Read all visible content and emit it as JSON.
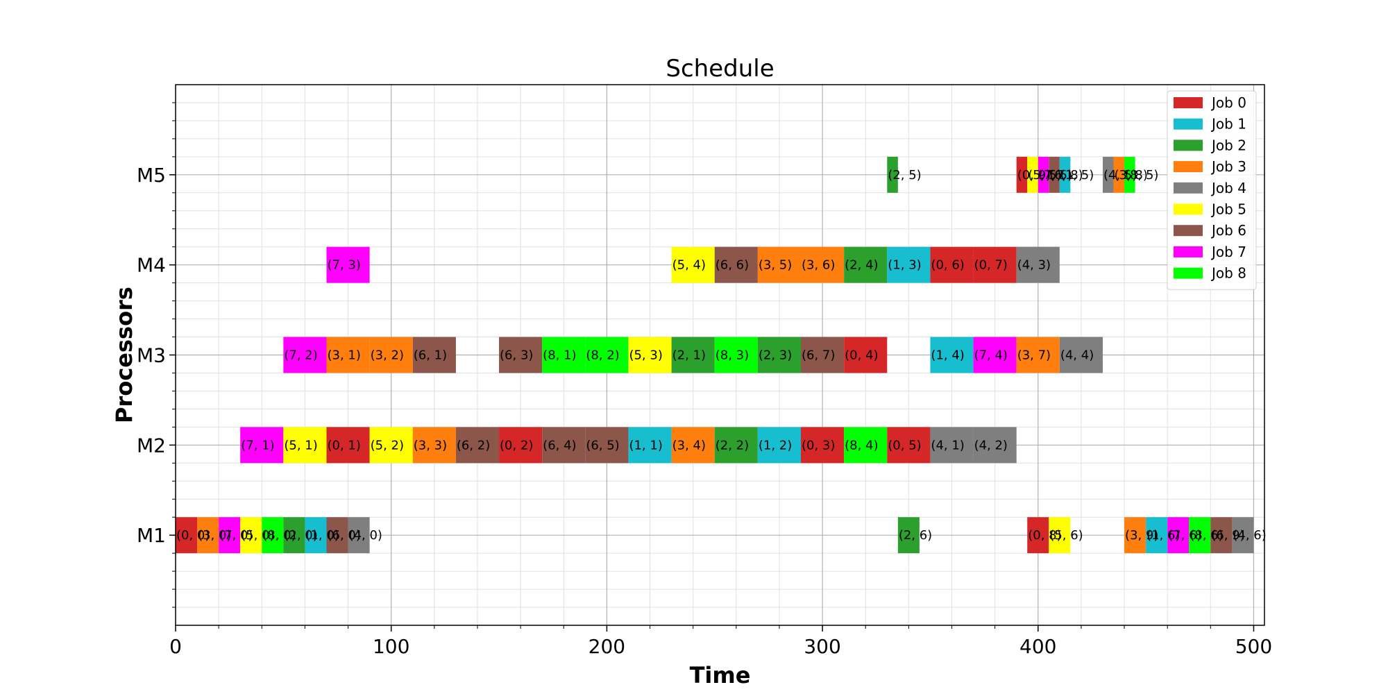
{
  "chart_data": {
    "type": "gantt",
    "title": "Schedule",
    "xlabel": "Time",
    "ylabel": "Processors",
    "xlim": [
      0,
      505
    ],
    "x_ticks": [
      0,
      100,
      200,
      300,
      400,
      500
    ],
    "x_minor_step": 20,
    "processors": [
      "M1",
      "M2",
      "M3",
      "M4",
      "M5"
    ],
    "grid": true,
    "legend_position": "top-right",
    "jobs": [
      {
        "name": "Job 0",
        "color": "#d62728"
      },
      {
        "name": "Job 1",
        "color": "#17becf"
      },
      {
        "name": "Job 2",
        "color": "#2ca02c"
      },
      {
        "name": "Job 3",
        "color": "#ff7f0e"
      },
      {
        "name": "Job 4",
        "color": "#7f7f7f"
      },
      {
        "name": "Job 5",
        "color": "#ffff00"
      },
      {
        "name": "Job 6",
        "color": "#8c564b"
      },
      {
        "name": "Job 7",
        "color": "#ff00ff"
      },
      {
        "name": "Job 8",
        "color": "#00ff00"
      }
    ],
    "tasks": [
      {
        "processor": "M1",
        "job": 0,
        "start": 0,
        "end": 10,
        "label": "(0, 0)"
      },
      {
        "processor": "M1",
        "job": 3,
        "start": 10,
        "end": 20,
        "label": "(3, 0)"
      },
      {
        "processor": "M1",
        "job": 7,
        "start": 20,
        "end": 30,
        "label": "(7, 0)"
      },
      {
        "processor": "M1",
        "job": 5,
        "start": 30,
        "end": 40,
        "label": "(5, 0)"
      },
      {
        "processor": "M1",
        "job": 8,
        "start": 40,
        "end": 50,
        "label": "(8, 0)"
      },
      {
        "processor": "M1",
        "job": 2,
        "start": 50,
        "end": 60,
        "label": "(2, 0)"
      },
      {
        "processor": "M1",
        "job": 1,
        "start": 60,
        "end": 70,
        "label": "(1, 0)"
      },
      {
        "processor": "M1",
        "job": 6,
        "start": 70,
        "end": 80,
        "label": "(6, 0)"
      },
      {
        "processor": "M1",
        "job": 4,
        "start": 80,
        "end": 90,
        "label": "(4, 0)"
      },
      {
        "processor": "M1",
        "job": 2,
        "start": 335,
        "end": 345,
        "label": "(2, 6)"
      },
      {
        "processor": "M1",
        "job": 0,
        "start": 395,
        "end": 405,
        "label": "(0, 8)"
      },
      {
        "processor": "M1",
        "job": 5,
        "start": 405,
        "end": 415,
        "label": "(5, 6)"
      },
      {
        "processor": "M1",
        "job": 3,
        "start": 440,
        "end": 450,
        "label": "(3, 9)"
      },
      {
        "processor": "M1",
        "job": 1,
        "start": 450,
        "end": 460,
        "label": "(1, 6)"
      },
      {
        "processor": "M1",
        "job": 7,
        "start": 460,
        "end": 470,
        "label": "(7, 6)"
      },
      {
        "processor": "M1",
        "job": 8,
        "start": 470,
        "end": 480,
        "label": "(8, 6)"
      },
      {
        "processor": "M1",
        "job": 6,
        "start": 480,
        "end": 490,
        "label": "(6, 9)"
      },
      {
        "processor": "M1",
        "job": 4,
        "start": 490,
        "end": 500,
        "label": "(4, 6)"
      },
      {
        "processor": "M2",
        "job": 7,
        "start": 30,
        "end": 50,
        "label": "(7, 1)"
      },
      {
        "processor": "M2",
        "job": 5,
        "start": 50,
        "end": 70,
        "label": "(5, 1)"
      },
      {
        "processor": "M2",
        "job": 0,
        "start": 70,
        "end": 90,
        "label": "(0, 1)"
      },
      {
        "processor": "M2",
        "job": 5,
        "start": 90,
        "end": 110,
        "label": "(5, 2)"
      },
      {
        "processor": "M2",
        "job": 3,
        "start": 110,
        "end": 130,
        "label": "(3, 3)"
      },
      {
        "processor": "M2",
        "job": 6,
        "start": 130,
        "end": 150,
        "label": "(6, 2)"
      },
      {
        "processor": "M2",
        "job": 0,
        "start": 150,
        "end": 170,
        "label": "(0, 2)"
      },
      {
        "processor": "M2",
        "job": 6,
        "start": 170,
        "end": 190,
        "label": "(6, 4)"
      },
      {
        "processor": "M2",
        "job": 6,
        "start": 190,
        "end": 210,
        "label": "(6, 5)"
      },
      {
        "processor": "M2",
        "job": 1,
        "start": 210,
        "end": 230,
        "label": "(1, 1)"
      },
      {
        "processor": "M2",
        "job": 3,
        "start": 230,
        "end": 250,
        "label": "(3, 4)"
      },
      {
        "processor": "M2",
        "job": 2,
        "start": 250,
        "end": 270,
        "label": "(2, 2)"
      },
      {
        "processor": "M2",
        "job": 1,
        "start": 270,
        "end": 290,
        "label": "(1, 2)"
      },
      {
        "processor": "M2",
        "job": 0,
        "start": 290,
        "end": 310,
        "label": "(0, 3)"
      },
      {
        "processor": "M2",
        "job": 8,
        "start": 310,
        "end": 330,
        "label": "(8, 4)"
      },
      {
        "processor": "M2",
        "job": 0,
        "start": 330,
        "end": 350,
        "label": "(0, 5)"
      },
      {
        "processor": "M2",
        "job": 4,
        "start": 350,
        "end": 370,
        "label": "(4, 1)"
      },
      {
        "processor": "M2",
        "job": 4,
        "start": 370,
        "end": 390,
        "label": "(4, 2)"
      },
      {
        "processor": "M3",
        "job": 7,
        "start": 50,
        "end": 70,
        "label": "(7, 2)"
      },
      {
        "processor": "M3",
        "job": 3,
        "start": 70,
        "end": 90,
        "label": "(3, 1)"
      },
      {
        "processor": "M3",
        "job": 3,
        "start": 90,
        "end": 110,
        "label": "(3, 2)"
      },
      {
        "processor": "M3",
        "job": 6,
        "start": 110,
        "end": 130,
        "label": "(6, 1)"
      },
      {
        "processor": "M3",
        "job": 6,
        "start": 150,
        "end": 170,
        "label": "(6, 3)"
      },
      {
        "processor": "M3",
        "job": 8,
        "start": 170,
        "end": 190,
        "label": "(8, 1)"
      },
      {
        "processor": "M3",
        "job": 8,
        "start": 190,
        "end": 210,
        "label": "(8, 2)"
      },
      {
        "processor": "M3",
        "job": 5,
        "start": 210,
        "end": 230,
        "label": "(5, 3)"
      },
      {
        "processor": "M3",
        "job": 2,
        "start": 230,
        "end": 250,
        "label": "(2, 1)"
      },
      {
        "processor": "M3",
        "job": 8,
        "start": 250,
        "end": 270,
        "label": "(8, 3)"
      },
      {
        "processor": "M3",
        "job": 2,
        "start": 270,
        "end": 290,
        "label": "(2, 3)"
      },
      {
        "processor": "M3",
        "job": 6,
        "start": 290,
        "end": 310,
        "label": "(6, 7)"
      },
      {
        "processor": "M3",
        "job": 0,
        "start": 310,
        "end": 330,
        "label": "(0, 4)"
      },
      {
        "processor": "M3",
        "job": 1,
        "start": 350,
        "end": 370,
        "label": "(1, 4)"
      },
      {
        "processor": "M3",
        "job": 7,
        "start": 370,
        "end": 390,
        "label": "(7, 4)"
      },
      {
        "processor": "M3",
        "job": 3,
        "start": 390,
        "end": 410,
        "label": "(3, 7)"
      },
      {
        "processor": "M3",
        "job": 4,
        "start": 410,
        "end": 430,
        "label": "(4, 4)"
      },
      {
        "processor": "M4",
        "job": 7,
        "start": 70,
        "end": 90,
        "label": "(7, 3)"
      },
      {
        "processor": "M4",
        "job": 5,
        "start": 230,
        "end": 250,
        "label": "(5, 4)"
      },
      {
        "processor": "M4",
        "job": 6,
        "start": 250,
        "end": 270,
        "label": "(6, 6)"
      },
      {
        "processor": "M4",
        "job": 3,
        "start": 270,
        "end": 290,
        "label": "(3, 5)"
      },
      {
        "processor": "M4",
        "job": 3,
        "start": 290,
        "end": 310,
        "label": "(3, 6)"
      },
      {
        "processor": "M4",
        "job": 2,
        "start": 310,
        "end": 330,
        "label": "(2, 4)"
      },
      {
        "processor": "M4",
        "job": 1,
        "start": 330,
        "end": 350,
        "label": "(1, 3)"
      },
      {
        "processor": "M4",
        "job": 0,
        "start": 350,
        "end": 370,
        "label": "(0, 6)"
      },
      {
        "processor": "M4",
        "job": 0,
        "start": 370,
        "end": 390,
        "label": "(0, 7)"
      },
      {
        "processor": "M4",
        "job": 4,
        "start": 390,
        "end": 410,
        "label": "(4, 3)"
      },
      {
        "processor": "M5",
        "job": 2,
        "start": 330,
        "end": 335,
        "label": "(2, 5)"
      },
      {
        "processor": "M5",
        "job": 0,
        "start": 390,
        "end": 395,
        "label": "(0, 9)"
      },
      {
        "processor": "M5",
        "job": 5,
        "start": 395,
        "end": 400,
        "label": "(5, 5)"
      },
      {
        "processor": "M5",
        "job": 7,
        "start": 400,
        "end": 405,
        "label": "(7, 5)"
      },
      {
        "processor": "M5",
        "job": 6,
        "start": 405,
        "end": 410,
        "label": "(6, 8)"
      },
      {
        "processor": "M5",
        "job": 1,
        "start": 410,
        "end": 415,
        "label": "(1, 5)"
      },
      {
        "processor": "M5",
        "job": 4,
        "start": 430,
        "end": 435,
        "label": "(4, 5)"
      },
      {
        "processor": "M5",
        "job": 3,
        "start": 435,
        "end": 440,
        "label": "(3, 8)"
      },
      {
        "processor": "M5",
        "job": 8,
        "start": 440,
        "end": 445,
        "label": "(8, 5)"
      }
    ]
  }
}
